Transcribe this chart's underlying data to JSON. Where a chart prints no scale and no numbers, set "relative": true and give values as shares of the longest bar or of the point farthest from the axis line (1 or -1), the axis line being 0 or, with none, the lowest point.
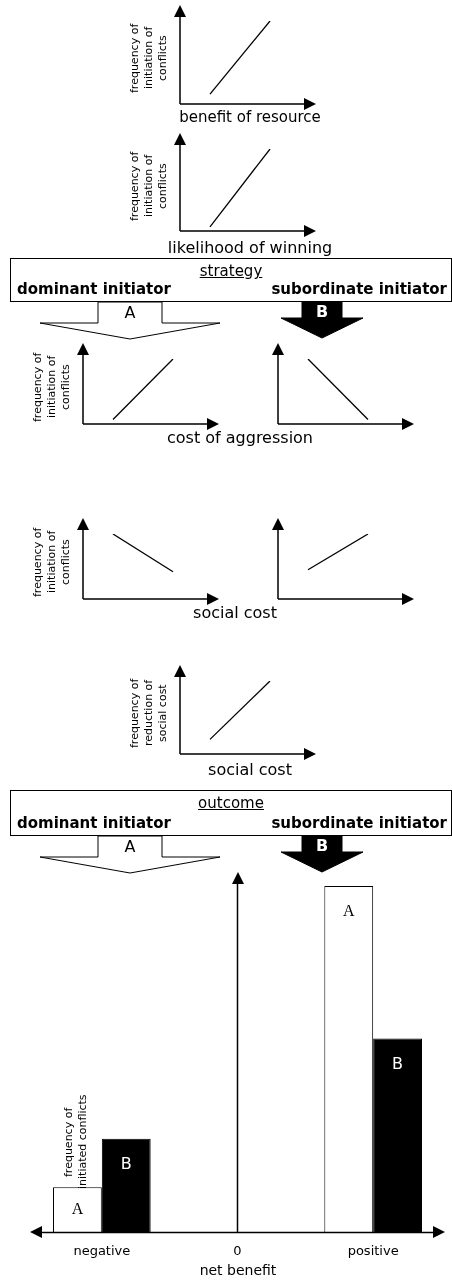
{
  "chart_data": [
    {
      "type": "line",
      "xlabel": "benefit of resource",
      "ylabel": "frequency of initiation of conflicts",
      "categories": [
        null,
        null
      ],
      "relative": true,
      "color": "#000000",
      "values": [
        0.12,
        1
      ]
    },
    {
      "type": "line",
      "xlabel": "likelihood of winning",
      "ylabel": "frequency of initiation of conflicts",
      "categories": [
        null,
        null
      ],
      "relative": true,
      "color": "#000000",
      "values": [
        0.05,
        1
      ]
    },
    {
      "type": "other",
      "title": "strategy",
      "annotations": [
        "dominant initiator",
        "subordinate initiator",
        "A",
        "B"
      ]
    },
    {
      "type": "line",
      "xlabel": "cost of aggression",
      "ylabel": "frequency of initiation of conflicts",
      "categories": [
        null,
        null
      ],
      "relative": true,
      "color": "#000000",
      "values": [
        0.07,
        1
      ]
    },
    {
      "type": "line",
      "categories": [
        null,
        null
      ],
      "relative": true,
      "color": "#000000",
      "values": [
        1,
        0.07
      ]
    },
    {
      "type": "line",
      "xlabel": "social cost",
      "ylabel": "frequency of initiation of conflicts",
      "categories": [
        null,
        null
      ],
      "relative": true,
      "color": "#000000",
      "values": [
        1,
        0.42
      ]
    },
    {
      "type": "line",
      "categories": [
        null,
        null
      ],
      "relative": true,
      "color": "#000000",
      "values": [
        0.45,
        1
      ]
    },
    {
      "type": "line",
      "xlabel": "social cost",
      "ylabel": "frequency of reduction of social cost",
      "categories": [
        null,
        null
      ],
      "relative": true,
      "color": "#000000",
      "values": [
        0.2,
        1
      ]
    },
    {
      "type": "other",
      "title": "outcome",
      "annotations": [
        "dominant initiator",
        "subordinate initiator",
        "A",
        "B"
      ]
    },
    {
      "type": "bar",
      "xlabel": "net benefit",
      "ylabel": "frequency of initiated conflicts",
      "categories": [
        "negative",
        "0",
        "positive"
      ],
      "relative": true,
      "series": [
        {
          "name": "A",
          "color": "#ffffff",
          "values": [
            0.13,
            null,
            1
          ]
        },
        {
          "name": "B",
          "color": "#000000",
          "values": [
            0.27,
            null,
            0.56
          ]
        }
      ]
    }
  ]
}
